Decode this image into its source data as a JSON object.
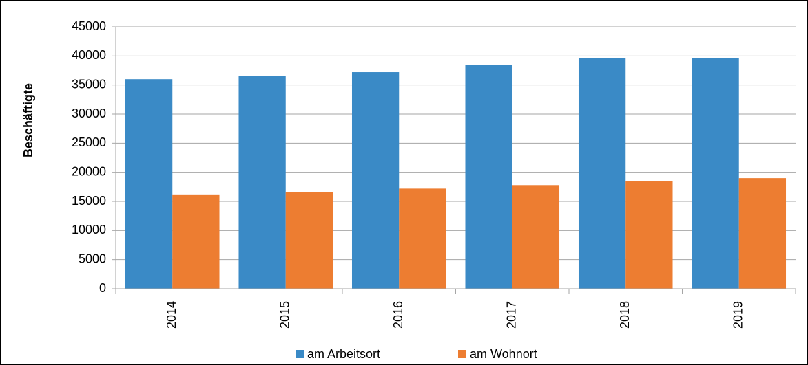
{
  "chart_data": {
    "type": "bar",
    "y_label": "Beschäftigte",
    "categories": [
      "2014",
      "2015",
      "2016",
      "2017",
      "2018",
      "2019"
    ],
    "series": [
      {
        "name": "am Arbeitsort",
        "color": "#3a8ac6",
        "values": [
          36000,
          36500,
          37200,
          38400,
          39600,
          39600
        ]
      },
      {
        "name": "am Wohnort",
        "color": "#ed7d31",
        "values": [
          16200,
          16600,
          17200,
          17800,
          18500,
          19000
        ]
      }
    ],
    "ylim": [
      0,
      45000
    ],
    "yticks": [
      0,
      5000,
      10000,
      15000,
      20000,
      25000,
      30000,
      35000,
      40000,
      45000
    ],
    "grid": true,
    "legend": "bottom"
  }
}
